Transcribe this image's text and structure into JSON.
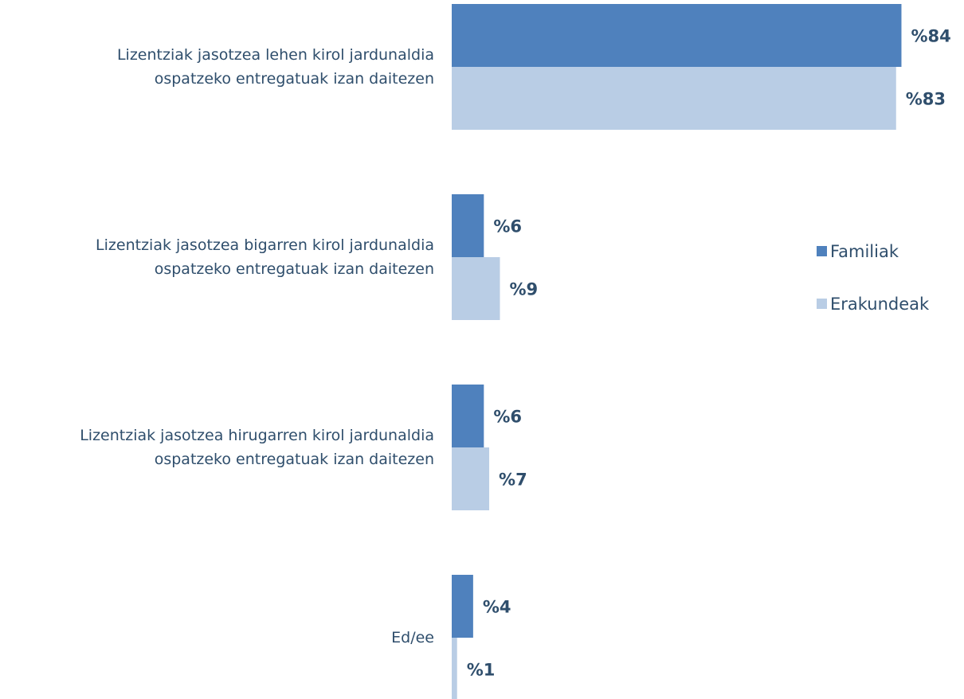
{
  "chart_data": {
    "type": "bar",
    "orientation": "horizontal",
    "categories": [
      "Lizentziak jasotzea lehen kirol jardunaldia\nospatzeko entregatuak izan daitezen",
      "Lizentziak jasotzea bigarren kirol jardunaldia\nospatzeko entregatuak izan daitezen",
      "Lizentziak jasotzea hirugarren kirol jardunaldia\nospatzeko entregatuak izan daitezen",
      "Ed/ee"
    ],
    "series": [
      {
        "name": "Familiak",
        "color": "#4f81bd",
        "values": [
          84,
          6,
          6,
          4
        ],
        "value_labels": [
          "%84",
          "%6",
          "%6",
          "%4"
        ]
      },
      {
        "name": "Erakundeak",
        "color": "#b9cde5",
        "values": [
          83,
          9,
          7,
          1
        ],
        "value_labels": [
          "%83",
          "%9",
          "%7",
          "%1"
        ]
      }
    ],
    "legend": "right"
  }
}
